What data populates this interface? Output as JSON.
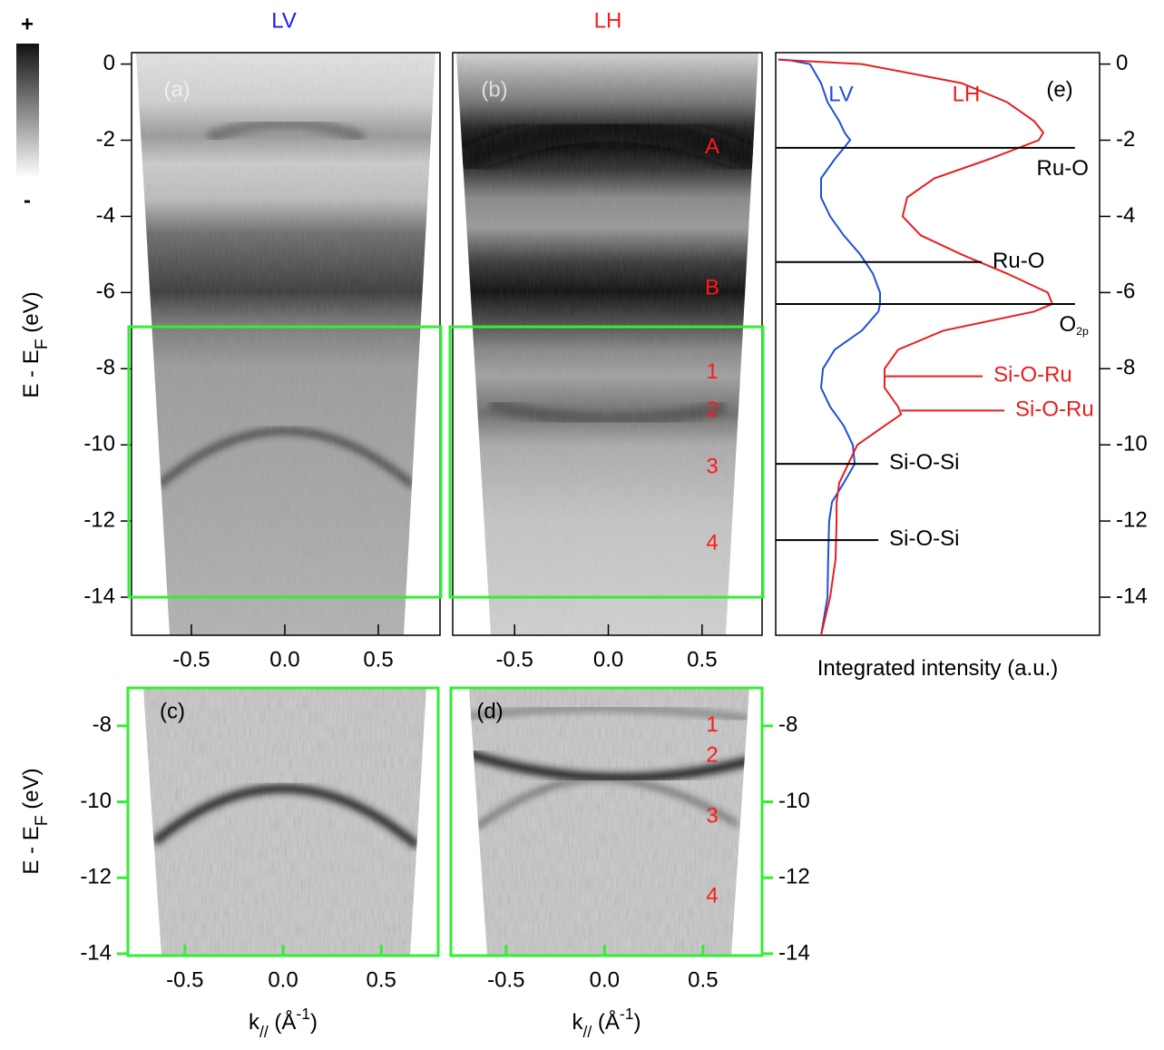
{
  "colorbar": {
    "max_label": "+",
    "min_label": "-"
  },
  "chart_data": [
    {
      "type": "image",
      "panel_label": "(a)",
      "title": "LV",
      "title_color": "#1a1aff",
      "xlim": [
        -0.82,
        0.83
      ],
      "ylim": [
        -15,
        0.3
      ],
      "xticks": [
        {
          "value": -0.5,
          "label": "-0.5"
        },
        {
          "value": 0,
          "label": "0.0"
        },
        {
          "value": 0.5,
          "label": "0.5"
        }
      ],
      "yticks": [
        0,
        -2,
        -4,
        -6,
        -8,
        -10,
        -12,
        -14
      ],
      "yaxis": "left",
      "y_label": [
        {
          "text": "E - E"
        },
        {
          "text": "F",
          "sub": true
        },
        {
          "text": " (eV)"
        }
      ],
      "box": [
        -14,
        -6.9
      ],
      "box_color": "#33ee33",
      "frame_color": "#000000",
      "tick_color": "#000000"
    },
    {
      "type": "image",
      "panel_label": "(b)",
      "title": "LH",
      "title_color": "#ff1a1a",
      "xlim": [
        -0.83,
        0.82
      ],
      "ylim": [
        -15,
        0.3
      ],
      "xticks": [
        {
          "value": -0.5,
          "label": "-0.5"
        },
        {
          "value": 0,
          "label": "0.0"
        },
        {
          "value": 0.5,
          "label": "0.5"
        }
      ],
      "box": [
        -14,
        -6.9
      ],
      "box_color": "#33ee33",
      "frame_color": "#000000",
      "tick_color": "#000000",
      "annotation_color": "#ff1a1a",
      "annotations": [
        {
          "label": "A",
          "y": -2.2
        },
        {
          "label": "B",
          "y": -5.9
        },
        {
          "label": "1",
          "y": -8.1
        },
        {
          "label": "2",
          "y": -9.1
        },
        {
          "label": "3",
          "y": -10.6
        },
        {
          "label": "4",
          "y": -12.6
        }
      ]
    },
    {
      "type": "line",
      "panel_label": "(e)",
      "xlim": [
        0,
        100
      ],
      "ylim": [
        -15,
        0.3
      ],
      "yticks": [
        0,
        -2,
        -4,
        -6,
        -8,
        -10,
        -12,
        -14
      ],
      "yaxis": "right",
      "x_label": [
        {
          "text": "Integrated intensity (a.u.)"
        }
      ],
      "frame_color": "#000000",
      "tick_color": "#000000",
      "energies": [
        0.12,
        0.1,
        0,
        -0.5,
        -1,
        -1.5,
        -1.8,
        -2,
        -2.5,
        -3,
        -3.5,
        -4,
        -4.5,
        -5,
        -5.5,
        -6,
        -6.3,
        -6.5,
        -7,
        -7.5,
        -8,
        -8.5,
        -9,
        -9.2,
        -9.5,
        -10,
        -10.5,
        -11,
        -11.5,
        -12,
        -13,
        -14,
        -15
      ],
      "series": [
        {
          "name": "LV",
          "color": "#1f4fd8",
          "values": [
            0.8,
            4.2,
            10.6,
            14.0,
            16.0,
            19.6,
            21.3,
            23.0,
            18.2,
            14.0,
            14.0,
            16.8,
            21.0,
            26.1,
            30.0,
            32.2,
            32.2,
            31.7,
            26.6,
            18.2,
            14.6,
            14.0,
            16.8,
            18.5,
            21.0,
            23.8,
            24.4,
            21.0,
            17.4,
            16.5,
            16.2,
            16.0,
            14.0
          ]
        },
        {
          "name": "LH",
          "color": "#e81e1e",
          "values": [
            0.8,
            4.2,
            26.6,
            57.4,
            71.4,
            79.8,
            82.6,
            81.2,
            65.8,
            49.0,
            40.6,
            39.2,
            44.8,
            57.4,
            71.4,
            84.0,
            85.4,
            79.8,
            51.8,
            37.8,
            33.6,
            33.6,
            37.8,
            38.7,
            33.6,
            25.2,
            22.4,
            19.6,
            18.8,
            18.8,
            18.5,
            16.8,
            14.0
          ]
        }
      ],
      "annotations": [
        {
          "label": [
            {
              "text": "Ru-O"
            }
          ],
          "y": -2.2,
          "x_range": [
            0,
            92.4
          ],
          "color": "#000000",
          "label_side": "below"
        },
        {
          "label": [
            {
              "text": "Ru-O"
            }
          ],
          "y": -5.2,
          "x_range": [
            0,
            63.6
          ],
          "color": "#000000",
          "label_side": "right"
        },
        {
          "label": [
            {
              "text": "O"
            },
            {
              "text": "2p",
              "sub": true
            }
          ],
          "y": -6.3,
          "x_range": [
            0,
            92.4
          ],
          "color": "#000000",
          "label_side": "below"
        },
        {
          "label": [
            {
              "text": "Si-O-Ru"
            }
          ],
          "y": -8.2,
          "x_range": [
            33.6,
            63.9
          ],
          "color": "#e81e1e",
          "label_side": "right"
        },
        {
          "label": [
            {
              "text": "Si-O-Ru"
            }
          ],
          "y": -9.1,
          "x_range": [
            38.7,
            70.6
          ],
          "color": "#e81e1e",
          "label_side": "right"
        },
        {
          "label": [
            {
              "text": "Si-O-Si"
            }
          ],
          "y": -10.5,
          "x_range": [
            0,
            31.7
          ],
          "color": "#000000",
          "label_side": "right"
        },
        {
          "label": [
            {
              "text": "Si-O-Si"
            }
          ],
          "y": -12.5,
          "x_range": [
            0,
            31.7
          ],
          "color": "#000000",
          "label_side": "right"
        }
      ]
    },
    {
      "type": "image",
      "panel_label": "(c)",
      "xlim": [
        -0.79,
        0.79
      ],
      "ylim": [
        -14.05,
        -7
      ],
      "xticks": [
        {
          "value": -0.5,
          "label": "-0.5"
        },
        {
          "value": 0,
          "label": "0.0"
        },
        {
          "value": 0.5,
          "label": "0.5"
        }
      ],
      "yticks": [
        -8,
        -10,
        -12,
        -14
      ],
      "yaxis": "left",
      "x_label": [
        {
          "text": "k"
        },
        {
          "text": "//",
          "sub": true
        },
        {
          "text": " (Å"
        },
        {
          "text": "-1",
          "sup": true
        },
        {
          "text": ")"
        }
      ],
      "y_label": [
        {
          "text": "E - E"
        },
        {
          "text": "F",
          "sub": true
        },
        {
          "text": " (eV)"
        }
      ],
      "frame_color": "#33ee33",
      "tick_color": "#33ee33"
    },
    {
      "type": "image",
      "panel_label": "(d)",
      "xlim": [
        -0.78,
        0.8
      ],
      "ylim": [
        -14.05,
        -7
      ],
      "xticks": [
        {
          "value": -0.5,
          "label": "-0.5"
        },
        {
          "value": 0,
          "label": "0.0"
        },
        {
          "value": 0.5,
          "label": "0.5"
        }
      ],
      "yticks": [
        -8,
        -10,
        -12,
        -14
      ],
      "yaxis": "right",
      "x_label": [
        {
          "text": "k"
        },
        {
          "text": "//",
          "sub": true
        },
        {
          "text": " (Å"
        },
        {
          "text": "-1",
          "sup": true
        },
        {
          "text": ")"
        }
      ],
      "frame_color": "#33ee33",
      "tick_color": "#33ee33",
      "annotation_color": "#ff1a1a",
      "annotations": [
        {
          "label": "1",
          "y": -8.0
        },
        {
          "label": "2",
          "y": -8.8
        },
        {
          "label": "3",
          "y": -10.4
        },
        {
          "label": "4",
          "y": -12.5
        }
      ]
    }
  ]
}
